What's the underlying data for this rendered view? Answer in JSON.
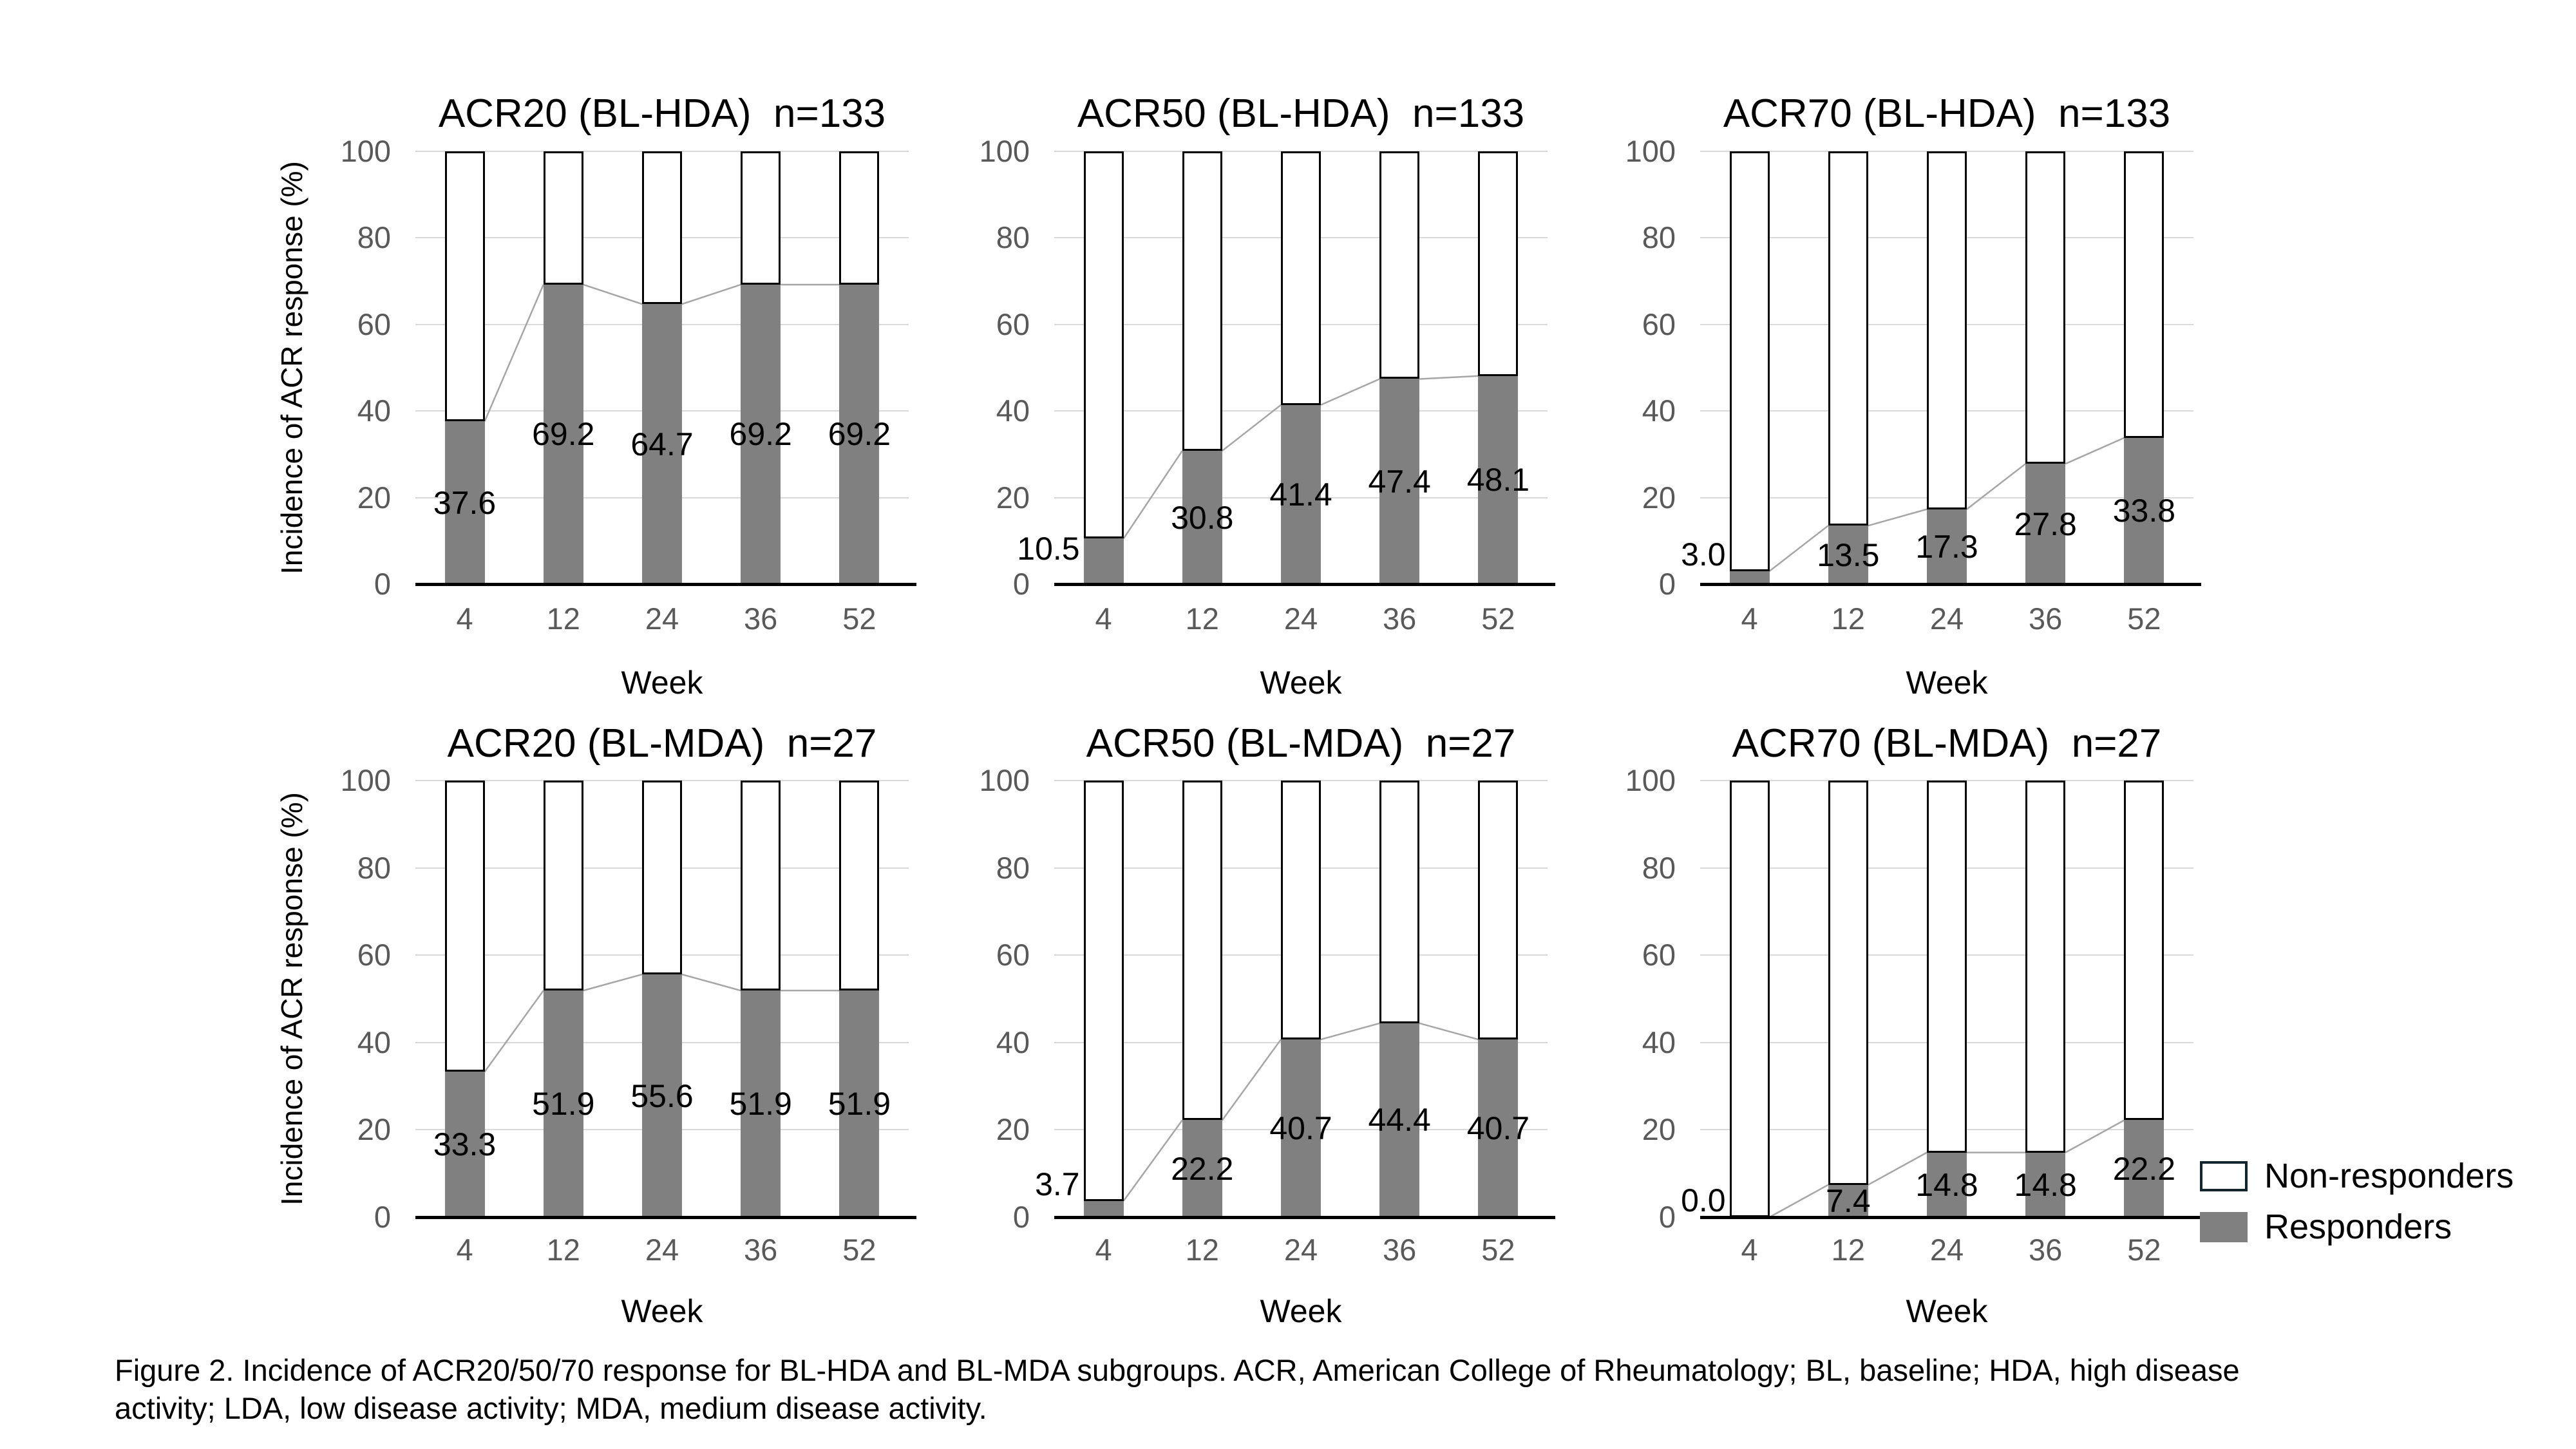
{
  "y_axis": {
    "label": "Incidence of ACR response (%)",
    "ticks": [
      "100",
      "80",
      "60",
      "40",
      "20",
      "0"
    ]
  },
  "x_axis": {
    "label": "Week",
    "categories": [
      "4",
      "12",
      "24",
      "36",
      "52"
    ]
  },
  "legend": {
    "items": [
      {
        "label": "Non-responders",
        "fill": "#ffffff",
        "border": "#132630"
      },
      {
        "label": "Responders",
        "fill": "#808080"
      }
    ]
  },
  "caption": {
    "line1": "Figure 2.  Incidence of ACR20/50/70 response for BL-HDA and BL-MDA subgroups. ACR, American College of Rheumatology; BL, baseline; HDA, high disease",
    "line2": "activity; LDA, low disease activity; MDA, medium disease activity."
  },
  "colors": {
    "responder_bar": "#808080",
    "non_responder_bar": "#ffffff",
    "bar_border": "#000000",
    "gridline": "#d9d9d9",
    "axis": "#000000",
    "tick_text": "#595959",
    "connector_line": "#a6a6a6",
    "legend_border": "#132630"
  },
  "chart_data": [
    {
      "type": "bar",
      "stacked": true,
      "title": "ACR20 (BL-HDA)",
      "n_label": "n=133",
      "categories": [
        "4",
        "12",
        "24",
        "36",
        "52"
      ],
      "xlabel": "Week",
      "ylabel": "Incidence of ACR response (%)",
      "ylim": [
        0,
        100
      ],
      "series": [
        {
          "name": "Responders",
          "values": [
            37.6,
            69.2,
            64.7,
            69.2,
            69.2
          ]
        },
        {
          "name": "Non-responders",
          "values": [
            62.4,
            30.8,
            35.3,
            30.8,
            30.8
          ]
        }
      ],
      "value_labels": [
        "37.6",
        "69.2",
        "64.7",
        "69.2",
        "69.2"
      ],
      "label_outside": [
        false,
        false,
        false,
        false,
        false
      ]
    },
    {
      "type": "bar",
      "stacked": true,
      "title": "ACR50 (BL-HDA)",
      "n_label": "n=133",
      "categories": [
        "4",
        "12",
        "24",
        "36",
        "52"
      ],
      "xlabel": "Week",
      "ylabel": "Incidence of ACR response (%)",
      "ylim": [
        0,
        100
      ],
      "series": [
        {
          "name": "Responders",
          "values": [
            10.5,
            30.8,
            41.4,
            47.4,
            48.1
          ]
        },
        {
          "name": "Non-responders",
          "values": [
            89.5,
            69.2,
            58.6,
            52.6,
            51.9
          ]
        }
      ],
      "value_labels": [
        "10.5",
        "30.8",
        "41.4",
        "47.4",
        "48.1"
      ],
      "label_outside": [
        true,
        false,
        false,
        false,
        false
      ]
    },
    {
      "type": "bar",
      "stacked": true,
      "title": "ACR70 (BL-HDA)",
      "n_label": "n=133",
      "categories": [
        "4",
        "12",
        "24",
        "36",
        "52"
      ],
      "xlabel": "Week",
      "ylabel": "Incidence of ACR response (%)",
      "ylim": [
        0,
        100
      ],
      "series": [
        {
          "name": "Responders",
          "values": [
            3.0,
            13.5,
            17.3,
            27.8,
            33.8
          ]
        },
        {
          "name": "Non-responders",
          "values": [
            97.0,
            86.5,
            82.7,
            72.2,
            66.2
          ]
        }
      ],
      "value_labels": [
        "3.0",
        "13.5",
        "17.3",
        "27.8",
        "33.8"
      ],
      "label_outside": [
        true,
        false,
        false,
        false,
        false
      ]
    },
    {
      "type": "bar",
      "stacked": true,
      "title": "ACR20 (BL-MDA)",
      "n_label": "n=27",
      "categories": [
        "4",
        "12",
        "24",
        "36",
        "52"
      ],
      "xlabel": "Week",
      "ylabel": "Incidence of ACR response (%)",
      "ylim": [
        0,
        100
      ],
      "series": [
        {
          "name": "Responders",
          "values": [
            33.3,
            51.9,
            55.6,
            51.9,
            51.9
          ]
        },
        {
          "name": "Non-responders",
          "values": [
            66.7,
            48.1,
            44.4,
            48.1,
            48.1
          ]
        }
      ],
      "value_labels": [
        "33.3",
        "51.9",
        "55.6",
        "51.9",
        "51.9"
      ],
      "label_outside": [
        false,
        false,
        false,
        false,
        false
      ]
    },
    {
      "type": "bar",
      "stacked": true,
      "title": "ACR50 (BL-MDA)",
      "n_label": "n=27",
      "categories": [
        "4",
        "12",
        "24",
        "36",
        "52"
      ],
      "xlabel": "Week",
      "ylabel": "Incidence of ACR response (%)",
      "ylim": [
        0,
        100
      ],
      "series": [
        {
          "name": "Responders",
          "values": [
            3.7,
            22.2,
            40.7,
            44.4,
            40.7
          ]
        },
        {
          "name": "Non-responders",
          "values": [
            96.3,
            77.8,
            59.3,
            55.6,
            59.3
          ]
        }
      ],
      "value_labels": [
        "3.7",
        "22.2",
        "40.7",
        "44.4",
        "40.7"
      ],
      "label_outside": [
        true,
        false,
        false,
        false,
        false
      ]
    },
    {
      "type": "bar",
      "stacked": true,
      "title": "ACR70 (BL-MDA)",
      "n_label": "n=27",
      "categories": [
        "4",
        "12",
        "24",
        "36",
        "52"
      ],
      "xlabel": "Week",
      "ylabel": "Incidence of ACR response (%)",
      "ylim": [
        0,
        100
      ],
      "series": [
        {
          "name": "Responders",
          "values": [
            0.0,
            7.4,
            14.8,
            14.8,
            22.2
          ]
        },
        {
          "name": "Non-responders",
          "values": [
            100.0,
            92.6,
            85.2,
            85.2,
            77.8
          ]
        }
      ],
      "value_labels": [
        "0.0",
        "7.4",
        "14.8",
        "14.8",
        "22.2"
      ],
      "label_outside": [
        true,
        false,
        false,
        false,
        false
      ]
    }
  ]
}
